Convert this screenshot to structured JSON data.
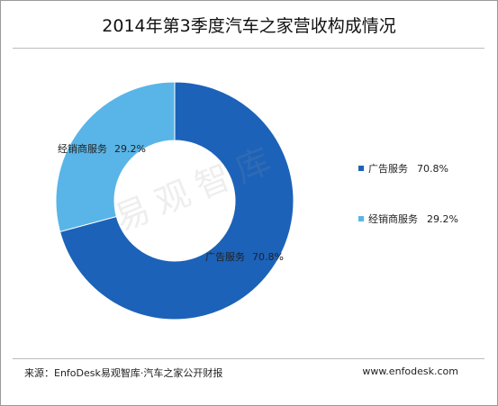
{
  "header": {
    "title": "2014年第3季度汽车之家营收构成情况"
  },
  "footer": {
    "source": "来源：EnfoDesk易观智库·汽车之家公开财报",
    "site": "www.enfodesk.com"
  },
  "watermark": "易观智库",
  "colors": {
    "series1": "#1c62b9",
    "series2": "#59b5e7"
  },
  "chart_data": {
    "type": "pie",
    "variant": "donut",
    "series": [
      {
        "name": "广告服务",
        "value": 70.8,
        "label": "70.8%"
      },
      {
        "name": "经销商服务",
        "value": 29.2,
        "label": "29.2%"
      }
    ],
    "legend_position": "right"
  }
}
